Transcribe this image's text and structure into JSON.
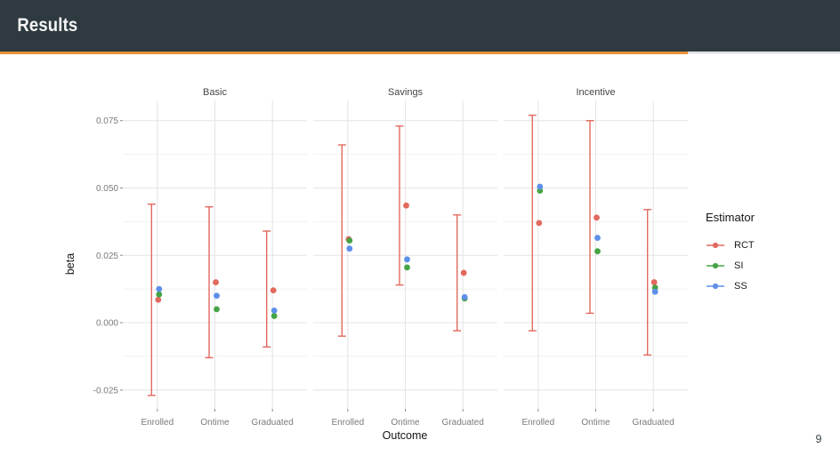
{
  "slide": {
    "title": "Results",
    "page_number": "9",
    "header_bg": "#2e3a40",
    "accent_color": "#e8923a"
  },
  "chart_data": {
    "type": "scatter",
    "subtype": "pointrange-faceted",
    "xlabel": "Outcome",
    "ylabel": "beta",
    "categories": [
      "Enrolled",
      "Ontime",
      "Graduated"
    ],
    "yticks": [
      {
        "label": "0.075",
        "value": 0.075
      },
      {
        "label": "0.050",
        "value": 0.05
      },
      {
        "label": "0.025",
        "value": 0.025
      },
      {
        "label": "0.000",
        "value": 0.0
      },
      {
        "label": "-0.025",
        "value": -0.025
      }
    ],
    "yminor": [
      0.0625,
      0.0375,
      0.0125,
      -0.0125
    ],
    "ylim": [
      -0.032,
      0.0825
    ],
    "grid": "major-and-minor-horizontal, major-vertical",
    "legend_position": "right",
    "legend": {
      "title": "Estimator",
      "entries": [
        {
          "label": "RCT",
          "color": "#e2695e"
        },
        {
          "label": "SI",
          "color": "#46a346"
        },
        {
          "label": "SS",
          "color": "#5e8fea"
        }
      ]
    },
    "facets": [
      {
        "name": "Basic",
        "rows": [
          {
            "outcome": "Enrolled",
            "RCT": 0.0085,
            "SI": 0.0105,
            "SS": 0.0125,
            "RCT_ci": [
              -0.027,
              0.044
            ]
          },
          {
            "outcome": "Ontime",
            "RCT": 0.015,
            "SI": 0.005,
            "SS": 0.01,
            "RCT_ci": [
              -0.013,
              0.043
            ]
          },
          {
            "outcome": "Graduated",
            "RCT": 0.012,
            "SI": 0.0025,
            "SS": 0.0045,
            "RCT_ci": [
              -0.009,
              0.034
            ]
          }
        ]
      },
      {
        "name": "Savings",
        "rows": [
          {
            "outcome": "Enrolled",
            "RCT": 0.031,
            "SI": 0.0305,
            "SS": 0.0275,
            "RCT_ci": [
              -0.005,
              0.066
            ]
          },
          {
            "outcome": "Ontime",
            "RCT": 0.0435,
            "SI": 0.0205,
            "SS": 0.0235,
            "RCT_ci": [
              0.014,
              0.073
            ]
          },
          {
            "outcome": "Graduated",
            "RCT": 0.0185,
            "SI": 0.009,
            "SS": 0.0095,
            "RCT_ci": [
              -0.003,
              0.04
            ]
          }
        ]
      },
      {
        "name": "Incentive",
        "rows": [
          {
            "outcome": "Enrolled",
            "RCT": 0.037,
            "SI": 0.049,
            "SS": 0.0505,
            "RCT_ci": [
              -0.003,
              0.077
            ]
          },
          {
            "outcome": "Ontime",
            "RCT": 0.039,
            "SI": 0.0265,
            "SS": 0.0315,
            "RCT_ci": [
              0.0035,
              0.075
            ]
          },
          {
            "outcome": "Graduated",
            "RCT": 0.015,
            "SI": 0.013,
            "SS": 0.0115,
            "RCT_ci": [
              -0.012,
              0.042
            ]
          }
        ]
      }
    ]
  }
}
